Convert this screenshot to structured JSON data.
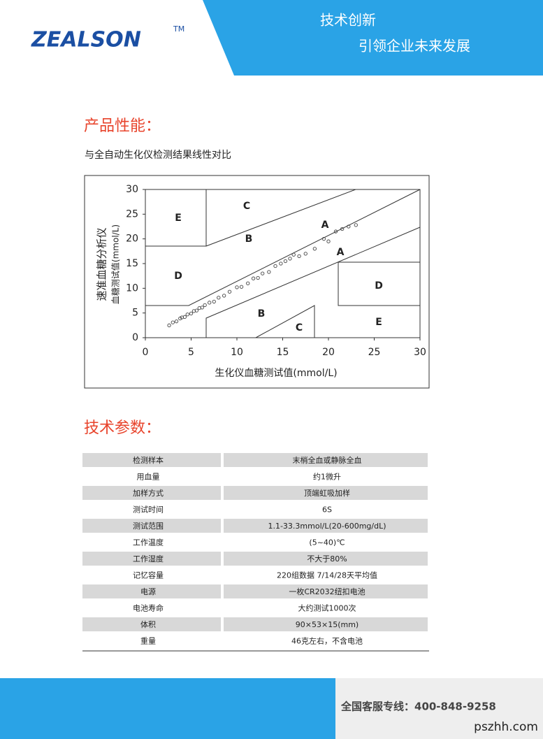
{
  "header": {
    "logo": "ZEALSON",
    "trademark": "TM",
    "slogan_1": "技术创新",
    "slogan_2": "引领企业未来发展"
  },
  "section_1": {
    "title": "产品性能：",
    "subtitle": "与全自动生化仪检测结果线性对比"
  },
  "chart_data": {
    "type": "scatter",
    "x_label": "生化仪血糖测试值(mmol/L)",
    "y_label": [
      "速准血糖分析仪",
      "血糖测试值(mmol/L)"
    ],
    "zone_labels": [
      "E",
      "C",
      "B",
      "A",
      "D",
      "A",
      "D",
      "B",
      "C",
      "E"
    ],
    "x": [
      2.6,
      3.0,
      3.4,
      3.8,
      4.0,
      4.3,
      4.6,
      5.0,
      5.3,
      5.6,
      5.9,
      6.2,
      6.5,
      7.0,
      7.5,
      8.0,
      8.6,
      9.2,
      10.0,
      10.5,
      11.2,
      11.8,
      12.3,
      12.8,
      13.5,
      14.2,
      14.8,
      15.3,
      15.8,
      16.2,
      16.8,
      17.5,
      18.5,
      19.5,
      20.0,
      20.8,
      21.5,
      22.2,
      23.0
    ],
    "values": [
      2.5,
      3.1,
      3.3,
      3.9,
      4.1,
      4.2,
      4.7,
      4.9,
      5.4,
      5.5,
      6.0,
      6.1,
      6.6,
      7.1,
      7.3,
      8.1,
      8.5,
      9.3,
      10.2,
      10.3,
      11.0,
      12.0,
      12.1,
      13.0,
      13.3,
      14.5,
      15.0,
      15.5,
      16.0,
      16.8,
      16.5,
      17.0,
      18.0,
      20.0,
      19.5,
      21.5,
      22.0,
      22.5,
      22.8
    ],
    "color": "#444444",
    "xlim": [
      0,
      30
    ],
    "ylim": [
      0,
      30
    ],
    "xticks": [
      0,
      5,
      10,
      15,
      20,
      25,
      30
    ],
    "yticks": [
      0,
      5,
      10,
      15,
      20,
      25,
      30
    ]
  },
  "section_2": {
    "title": "技术参数："
  },
  "table": {
    "rows": [
      [
        "检测样本",
        "末梢全血或静脉全血"
      ],
      [
        "用血量",
        "约1微升"
      ],
      [
        "加样方式",
        "顶端虹吸加样"
      ],
      [
        "测试时间",
        "6S"
      ],
      [
        "测试范围",
        "1.1-33.3mmol/L(20-600mg/dL)"
      ],
      [
        "工作温度",
        "(5~40)℃"
      ],
      [
        "工作湿度",
        "不大于80%"
      ],
      [
        "记忆容量",
        "220组数据   7/14/28天平均值"
      ],
      [
        "电源",
        "一枚CR2032纽扣电池"
      ],
      [
        "电池寿命",
        "大约测试1000次"
      ],
      [
        "体积",
        "90×53×15(mm)"
      ],
      [
        "重量",
        "46克左右，不含电池"
      ]
    ]
  },
  "footer": {
    "hotline": "全国客服专线：400-848-9258",
    "watermark": "pszhh.com"
  }
}
